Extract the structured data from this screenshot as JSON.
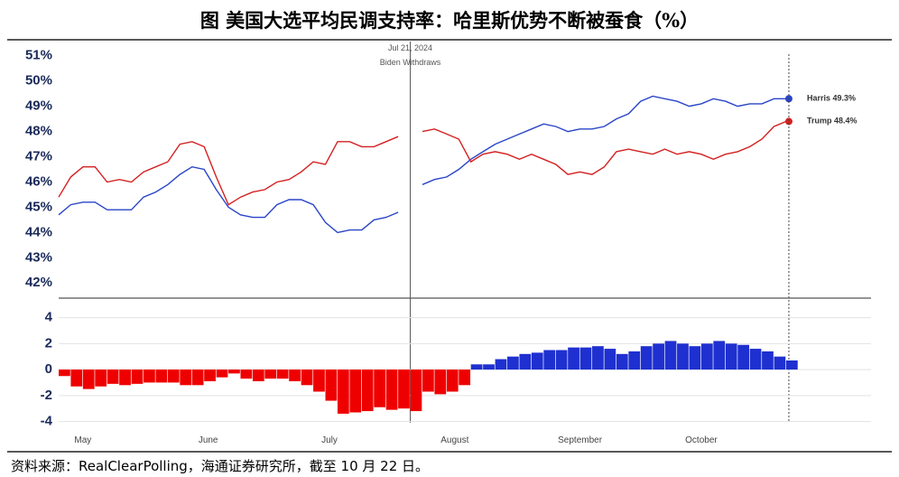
{
  "title": "图 美国大选平均民调支持率：哈里斯优势不断被蚕食（%）",
  "source": "资料来源：RealClearPolling，海通证券研究所，截至 10 月 22 日。",
  "chart_data": [
    {
      "type": "line",
      "x": [
        116,
        119,
        122,
        125,
        128,
        131,
        134,
        137,
        140,
        143,
        146,
        149,
        152,
        155,
        158,
        161,
        164,
        167,
        170,
        173,
        176,
        179,
        182,
        185,
        188,
        191,
        194,
        197,
        200,
        203,
        206,
        209,
        212,
        215,
        218,
        221,
        224,
        227,
        230,
        233,
        236,
        239,
        242,
        245,
        248,
        251,
        254,
        257,
        260,
        263,
        266,
        269,
        272,
        275,
        278,
        281,
        284,
        287,
        290,
        293,
        296
      ],
      "xlim": [
        116,
        317
      ],
      "ylim": [
        41.4,
        51.6
      ],
      "yticks": [
        {
          "value": 42,
          "label": "42%"
        },
        {
          "value": 43,
          "label": "43%"
        },
        {
          "value": 44,
          "label": "44%"
        },
        {
          "value": 45,
          "label": "45%"
        },
        {
          "value": 46,
          "label": "46%"
        },
        {
          "value": 47,
          "label": "47%"
        },
        {
          "value": 48,
          "label": "48%"
        },
        {
          "value": 49,
          "label": "49%"
        },
        {
          "value": 50,
          "label": "50%"
        },
        {
          "value": 51,
          "label": "51%"
        }
      ],
      "grid": false,
      "annotation": {
        "x": 203,
        "date": "Jul 21, 2024",
        "text": "Biden Withdraws"
      },
      "series": [
        {
          "name": "Harris",
          "color": "#2a45c8",
          "values": [
            44.7,
            45.1,
            45.2,
            45.2,
            44.9,
            44.9,
            44.9,
            45.4,
            45.6,
            45.9,
            46.3,
            46.6,
            46.5,
            45.7,
            45.0,
            44.7,
            44.6,
            44.6,
            45.1,
            45.3,
            45.3,
            45.1,
            44.4,
            44.0,
            44.1,
            44.1,
            44.5,
            44.6,
            44.8,
            null,
            45.9,
            46.1,
            46.2,
            46.5,
            46.9,
            47.2,
            47.5,
            47.7,
            47.9,
            48.1,
            48.3,
            48.2,
            48.0,
            48.1,
            48.1,
            48.2,
            48.5,
            48.7,
            49.2,
            49.4,
            49.3,
            49.2,
            49.0,
            49.1,
            49.3,
            49.2,
            49.0,
            49.1,
            49.1,
            49.3,
            49.3
          ],
          "value_labels": [
            null,
            null,
            null,
            null,
            null,
            null,
            null,
            null,
            null,
            null,
            null,
            null,
            null,
            null,
            null,
            null,
            null,
            null,
            null,
            null,
            null,
            null,
            null,
            null,
            null,
            null,
            null,
            null,
            null,
            null,
            null,
            null,
            null,
            null,
            null,
            null,
            null,
            null,
            null,
            null,
            null,
            null,
            null,
            null,
            null,
            null,
            null,
            null,
            null,
            null,
            null,
            null,
            null,
            null,
            null,
            null,
            null,
            null,
            null,
            null,
            "49.3%"
          ]
        },
        {
          "name": "Trump",
          "color": "#d42020",
          "values": [
            45.4,
            46.2,
            46.6,
            46.6,
            46.0,
            46.1,
            46.0,
            46.4,
            46.6,
            46.8,
            47.5,
            47.6,
            47.4,
            46.2,
            45.1,
            45.4,
            45.6,
            45.7,
            46.0,
            46.1,
            46.4,
            46.8,
            46.7,
            47.6,
            47.6,
            47.4,
            47.4,
            47.6,
            47.8,
            null,
            48.0,
            48.1,
            47.9,
            47.7,
            46.8,
            47.1,
            47.2,
            47.1,
            46.9,
            47.1,
            46.9,
            46.7,
            46.3,
            46.4,
            46.3,
            46.6,
            47.2,
            47.3,
            47.2,
            47.1,
            47.3,
            47.1,
            47.2,
            47.1,
            46.9,
            47.1,
            47.2,
            47.4,
            47.7,
            48.2,
            48.4
          ],
          "value_labels": [
            null,
            null,
            null,
            null,
            null,
            null,
            null,
            null,
            null,
            null,
            null,
            null,
            null,
            null,
            null,
            null,
            null,
            null,
            null,
            null,
            null,
            null,
            null,
            null,
            null,
            null,
            null,
            null,
            null,
            null,
            null,
            null,
            null,
            null,
            null,
            null,
            null,
            null,
            null,
            null,
            null,
            null,
            null,
            null,
            null,
            null,
            null,
            null,
            null,
            null,
            null,
            null,
            null,
            null,
            null,
            null,
            null,
            null,
            null,
            null,
            "48.4%"
          ]
        }
      ]
    },
    {
      "type": "bar",
      "x": [
        116,
        119,
        122,
        125,
        128,
        131,
        134,
        137,
        140,
        143,
        146,
        149,
        152,
        155,
        158,
        161,
        164,
        167,
        170,
        173,
        176,
        179,
        182,
        185,
        188,
        191,
        194,
        197,
        200,
        203,
        206,
        209,
        212,
        215,
        218,
        221,
        224,
        227,
        230,
        233,
        236,
        239,
        242,
        245,
        248,
        251,
        254,
        257,
        260,
        263,
        266,
        269,
        272,
        275,
        278,
        281,
        284,
        287,
        290,
        293,
        296
      ],
      "xlim": [
        116,
        317
      ],
      "ylim": [
        -4.1,
        5.5
      ],
      "yticks": [
        -4,
        -2,
        0,
        2,
        4
      ],
      "xticks": [
        {
          "value": 122,
          "label": "May"
        },
        {
          "value": 153,
          "label": "June"
        },
        {
          "value": 183,
          "label": "July"
        },
        {
          "value": 214,
          "label": "August"
        },
        {
          "value": 245,
          "label": "September"
        },
        {
          "value": 275,
          "label": "October"
        }
      ],
      "grid": true,
      "colors": {
        "positive": "#1f30d0",
        "negative": "#ee0000"
      },
      "values": [
        -0.5,
        -1.3,
        -1.5,
        -1.3,
        -1.1,
        -1.2,
        -1.1,
        -1.0,
        -1.0,
        -1.0,
        -1.2,
        -1.2,
        -0.9,
        -0.6,
        -0.3,
        -0.7,
        -0.9,
        -0.7,
        -0.7,
        -0.9,
        -1.2,
        -1.7,
        -2.4,
        -3.4,
        -3.3,
        -3.2,
        -2.9,
        -3.1,
        -3.0,
        -3.2,
        -1.7,
        -1.9,
        -1.7,
        -1.2,
        0.4,
        0.4,
        0.8,
        1.0,
        1.2,
        1.3,
        1.5,
        1.5,
        1.7,
        1.7,
        1.8,
        1.6,
        1.2,
        1.4,
        1.8,
        2.0,
        2.2,
        2.0,
        1.8,
        2.0,
        2.2,
        2.0,
        1.9,
        1.6,
        1.4,
        1.0,
        0.7
      ]
    }
  ]
}
